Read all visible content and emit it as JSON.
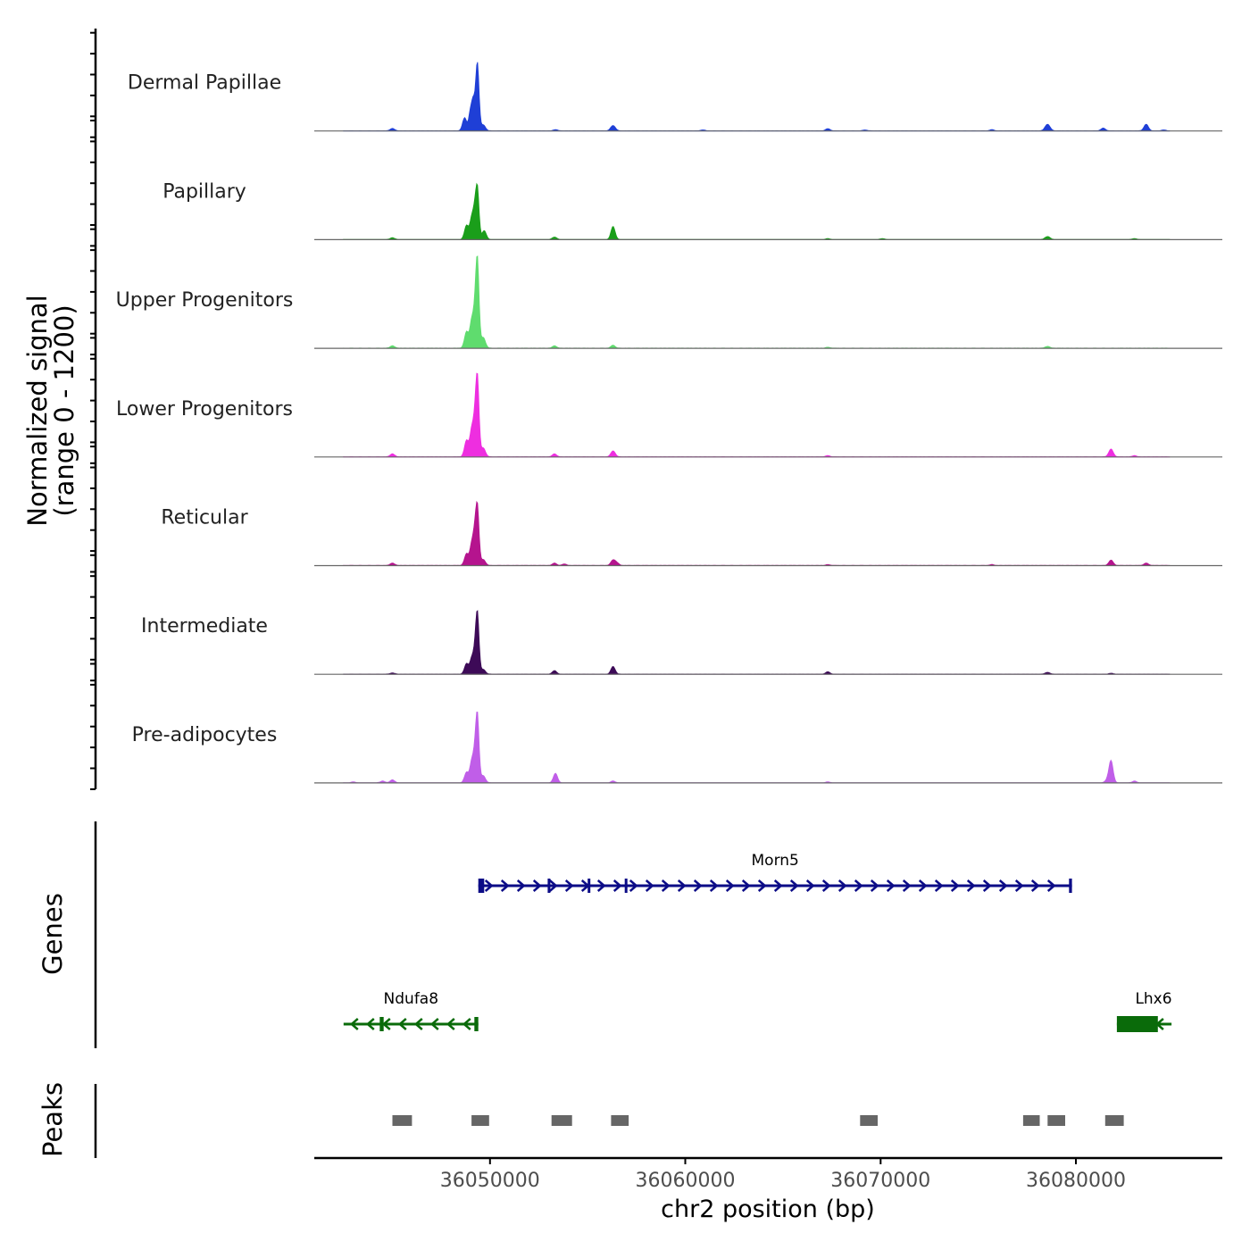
{
  "chart_data": {
    "type": "area",
    "title": "",
    "chromosome": "chr2",
    "xlabel": "chr2 position (bp)",
    "ylabel": "Normalized signal",
    "ylabel_sub": "(range 0 - 1200)",
    "xlim": [
      36041000,
      36087500
    ],
    "xticks": [
      36050000,
      36060000,
      36070000,
      36080000
    ],
    "xtick_labels": [
      "36050000",
      "36060000",
      "36070000",
      "36080000"
    ],
    "ylim": [
      0,
      1200
    ],
    "tracks": [
      {
        "name": "Dermal Papillae",
        "color": "#1f3fd6",
        "peaks": [
          [
            36045000,
            40,
            160
          ],
          [
            36048700,
            220,
            150
          ],
          [
            36049000,
            330,
            120
          ],
          [
            36049150,
            450,
            110
          ],
          [
            36049350,
            1150,
            120
          ],
          [
            36049650,
            100,
            160
          ],
          [
            36056300,
            90,
            170
          ],
          [
            36053350,
            20,
            150
          ],
          [
            36060900,
            15,
            150
          ],
          [
            36067300,
            35,
            160
          ],
          [
            36069200,
            15,
            150
          ],
          [
            36075700,
            20,
            150
          ],
          [
            36078550,
            110,
            180
          ],
          [
            36081400,
            45,
            160
          ],
          [
            36083600,
            110,
            160
          ],
          [
            36084500,
            15,
            150
          ]
        ]
      },
      {
        "name": "Papillary",
        "color": "#1a9e1a",
        "peaks": [
          [
            36045000,
            30,
            160
          ],
          [
            36048800,
            240,
            150
          ],
          [
            36049050,
            330,
            120
          ],
          [
            36049200,
            400,
            110
          ],
          [
            36049350,
            870,
            120
          ],
          [
            36049700,
            150,
            150
          ],
          [
            36053300,
            40,
            160
          ],
          [
            36056300,
            220,
            150
          ],
          [
            36067300,
            15,
            150
          ],
          [
            36070100,
            15,
            150
          ],
          [
            36078550,
            50,
            180
          ],
          [
            36083000,
            15,
            160
          ]
        ]
      },
      {
        "name": "Upper Progenitors",
        "color": "#5fdc6e",
        "peaks": [
          [
            36045000,
            40,
            160
          ],
          [
            36048800,
            280,
            150
          ],
          [
            36049050,
            420,
            120
          ],
          [
            36049200,
            450,
            110
          ],
          [
            36049350,
            1500,
            120
          ],
          [
            36049650,
            180,
            160
          ],
          [
            36053300,
            40,
            150
          ],
          [
            36056300,
            50,
            150
          ],
          [
            36067300,
            15,
            150
          ],
          [
            36078550,
            30,
            160
          ]
        ]
      },
      {
        "name": "Lower Progenitors",
        "color": "#ee2ee0",
        "peaks": [
          [
            36045000,
            50,
            160
          ],
          [
            36048800,
            280,
            150
          ],
          [
            36049050,
            420,
            120
          ],
          [
            36049200,
            470,
            110
          ],
          [
            36049350,
            1350,
            120
          ],
          [
            36049650,
            150,
            160
          ],
          [
            36053300,
            50,
            150
          ],
          [
            36056300,
            100,
            160
          ],
          [
            36067300,
            20,
            150
          ],
          [
            36081800,
            130,
            160
          ],
          [
            36083000,
            20,
            150
          ]
        ]
      },
      {
        "name": "Reticular",
        "color": "#b5148e",
        "peaks": [
          [
            36045000,
            40,
            160
          ],
          [
            36048800,
            200,
            150
          ],
          [
            36049050,
            330,
            120
          ],
          [
            36049200,
            440,
            110
          ],
          [
            36049350,
            1000,
            120
          ],
          [
            36049650,
            100,
            160
          ],
          [
            36053300,
            40,
            150
          ],
          [
            36053800,
            25,
            150
          ],
          [
            36056300,
            90,
            160
          ],
          [
            36056500,
            40,
            150
          ],
          [
            36067300,
            15,
            150
          ],
          [
            36075700,
            15,
            150
          ],
          [
            36081800,
            90,
            160
          ],
          [
            36083600,
            40,
            160
          ]
        ]
      },
      {
        "name": "Intermediate",
        "color": "#3d0a57",
        "peaks": [
          [
            36045000,
            20,
            160
          ],
          [
            36048800,
            180,
            150
          ],
          [
            36049050,
            240,
            120
          ],
          [
            36049200,
            280,
            110
          ],
          [
            36049350,
            1040,
            120
          ],
          [
            36049650,
            80,
            160
          ],
          [
            36053300,
            60,
            150
          ],
          [
            36056300,
            130,
            150
          ],
          [
            36067300,
            40,
            150
          ],
          [
            36078550,
            30,
            160
          ],
          [
            36081800,
            15,
            150
          ]
        ]
      },
      {
        "name": "Pre-adipocytes",
        "color": "#c05ee8",
        "peaks": [
          [
            36043000,
            15,
            150
          ],
          [
            36044500,
            30,
            160
          ],
          [
            36045000,
            50,
            160
          ],
          [
            36048800,
            180,
            150
          ],
          [
            36049050,
            330,
            120
          ],
          [
            36049200,
            380,
            110
          ],
          [
            36049350,
            1150,
            120
          ],
          [
            36049650,
            120,
            160
          ],
          [
            36053350,
            160,
            150
          ],
          [
            36056300,
            30,
            150
          ],
          [
            36067300,
            15,
            150
          ],
          [
            36081600,
            40,
            160
          ],
          [
            36081800,
            370,
            150
          ],
          [
            36083000,
            30,
            150
          ]
        ]
      }
    ],
    "genes": [
      {
        "name": "Morn5",
        "strand": "+",
        "color": "#0c0c87",
        "start": 36049400,
        "end": 36079800,
        "row": 0,
        "exons": [
          [
            36049400,
            36049700
          ],
          [
            36052950,
            36053050
          ],
          [
            36055000,
            36055100
          ],
          [
            36056900,
            36057000
          ],
          [
            36079650,
            36079800
          ]
        ]
      },
      {
        "name": "Ndufa8",
        "strand": "-",
        "color": "#0a6b0a",
        "start": 36042500,
        "end": 36049400,
        "row": 1,
        "exons": [
          [
            36044350,
            36044550
          ],
          [
            36049200,
            36049400
          ]
        ]
      },
      {
        "name": "Lhx6",
        "strand": "-",
        "color": "#0a6b0a",
        "start": 36082100,
        "end": 36084900,
        "row": 1,
        "exons": [
          [
            36082100,
            36084200
          ]
        ]
      }
    ],
    "peaks": [
      [
        36045000,
        36046000
      ],
      [
        36049050,
        36049950
      ],
      [
        36053150,
        36054200
      ],
      [
        36056200,
        36057100
      ],
      [
        36068950,
        36069850
      ],
      [
        36077300,
        36078150
      ],
      [
        36078550,
        36079450
      ],
      [
        36081500,
        36082450
      ]
    ],
    "panel_labels": {
      "genes": "Genes",
      "peaks": "Peaks"
    }
  }
}
